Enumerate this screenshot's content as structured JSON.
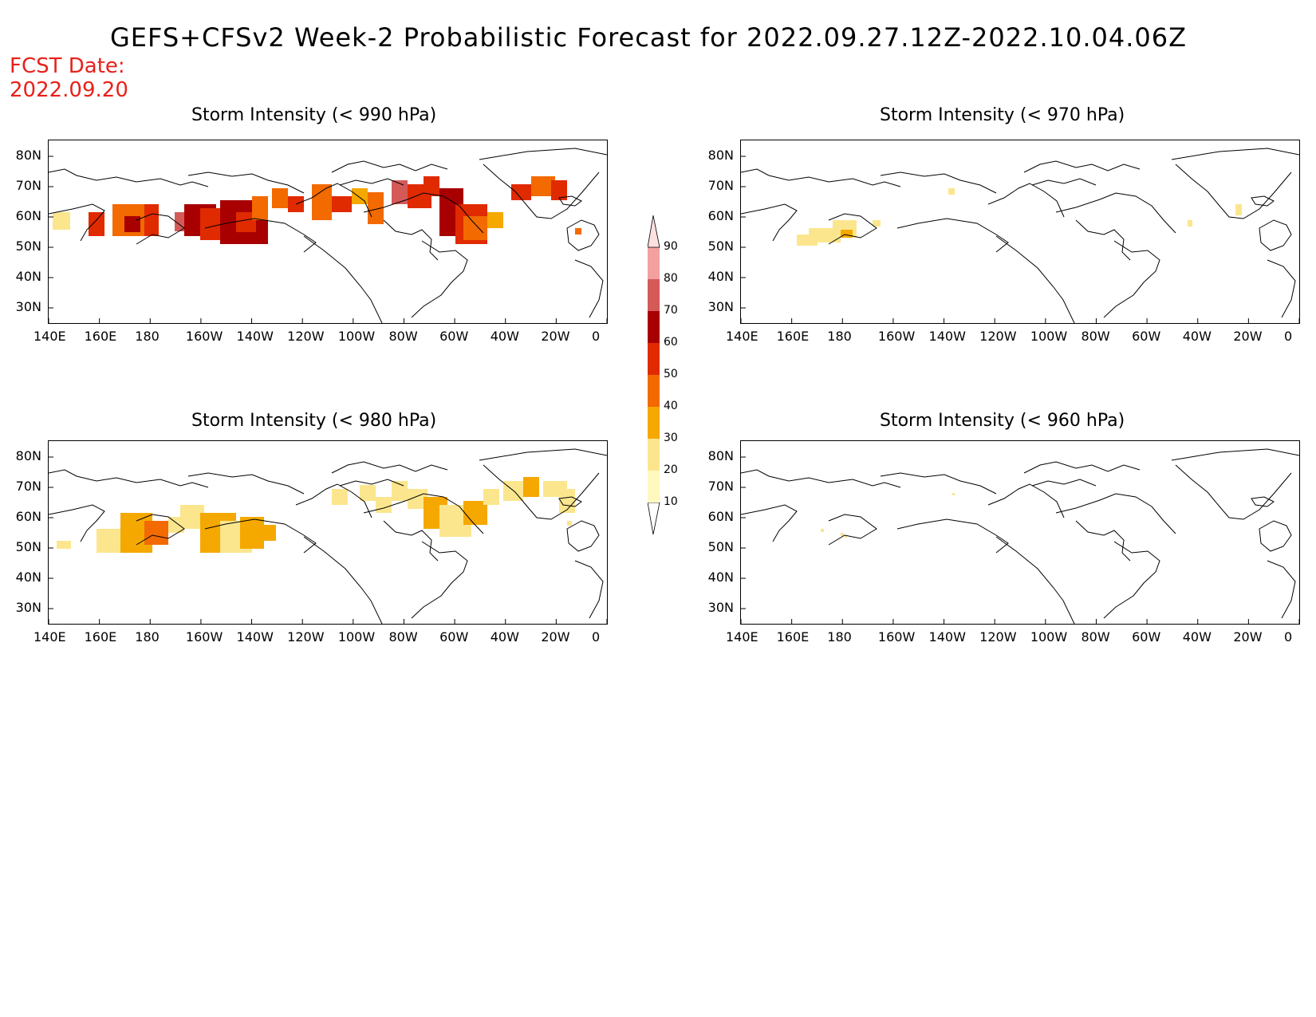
{
  "header": {
    "title": "GEFS+CFSv2 Week-2 Probabilistic Forecast for 2022.09.27.12Z-2022.10.04.06Z",
    "fcst_label": "FCST Date:",
    "fcst_date": "2022.09.20"
  },
  "panels": [
    {
      "id": "p990",
      "title": "Storm Intensity (< 990 hPa)",
      "intensity": "high"
    },
    {
      "id": "p970",
      "title": "Storm Intensity (< 970 hPa)",
      "intensity": "low"
    },
    {
      "id": "p980",
      "title": "Storm Intensity (< 980 hPa)",
      "intensity": "medium"
    },
    {
      "id": "p960",
      "title": "Storm Intensity (< 960 hPa)",
      "intensity": "minimal"
    }
  ],
  "axes": {
    "lon_labels": [
      "140E",
      "160E",
      "180",
      "160W",
      "140W",
      "120W",
      "100W",
      "80W",
      "60W",
      "40W",
      "20W",
      "0"
    ],
    "lat_labels": [
      "80N",
      "70N",
      "60N",
      "50N",
      "40N",
      "30N"
    ]
  },
  "colorbar": {
    "levels": [
      "10",
      "20",
      "30",
      "40",
      "50",
      "60",
      "70",
      "80",
      "90"
    ],
    "colors": [
      "#fff8c0",
      "#fbe68e",
      "#f5a800",
      "#f26a00",
      "#e02a00",
      "#a80000",
      "#d45a5a",
      "#f2a0a0",
      "#fde0e0"
    ]
  }
}
